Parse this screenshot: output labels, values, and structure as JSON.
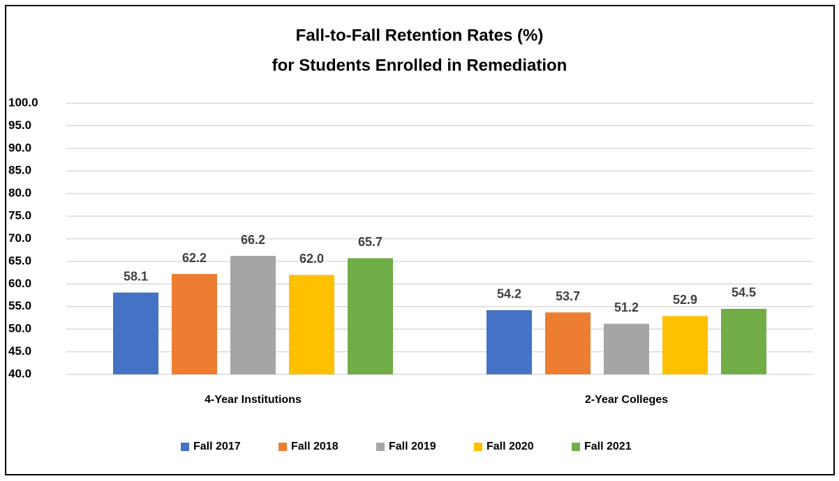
{
  "chart_data": {
    "type": "bar",
    "title": "Fall-to-Fall Retention Rates (%)",
    "subtitle": "for Students Enrolled in Remediation",
    "categories": [
      "4-Year Institutions",
      "2-Year Colleges"
    ],
    "series": [
      {
        "name": "Fall 2017",
        "color": "#4472c4",
        "values": [
          58.1,
          54.2
        ],
        "value_labels": [
          "58.1",
          "54.2"
        ]
      },
      {
        "name": "Fall 2018",
        "color": "#ed7d31",
        "values": [
          62.2,
          53.7
        ],
        "value_labels": [
          "62.2",
          "53.7"
        ]
      },
      {
        "name": "Fall 2019",
        "color": "#a5a5a5",
        "values": [
          66.2,
          51.2
        ],
        "value_labels": [
          "66.2",
          "51.2"
        ]
      },
      {
        "name": "Fall 2020",
        "color": "#ffc000",
        "values": [
          62.0,
          52.9
        ],
        "value_labels": [
          "62.0",
          "52.9"
        ]
      },
      {
        "name": "Fall 2021",
        "color": "#70ad47",
        "values": [
          65.7,
          54.5
        ],
        "value_labels": [
          "65.7",
          "54.5"
        ]
      }
    ],
    "ylim": [
      40,
      100
    ],
    "yticks": [
      {
        "value": 40,
        "label": "40.0"
      },
      {
        "value": 45,
        "label": "45.0"
      },
      {
        "value": 50,
        "label": "50.0"
      },
      {
        "value": 55,
        "label": "55.0"
      },
      {
        "value": 60,
        "label": "60.0"
      },
      {
        "value": 65,
        "label": "65.0"
      },
      {
        "value": 70,
        "label": "70.0"
      },
      {
        "value": 75,
        "label": "75.0"
      },
      {
        "value": 80,
        "label": "80.0"
      },
      {
        "value": 85,
        "label": "85.0"
      },
      {
        "value": 90,
        "label": "90.0"
      },
      {
        "value": 95,
        "label": "95.0"
      },
      {
        "value": 100,
        "label": "100.0"
      }
    ],
    "grid": true,
    "legend": "bottom"
  }
}
